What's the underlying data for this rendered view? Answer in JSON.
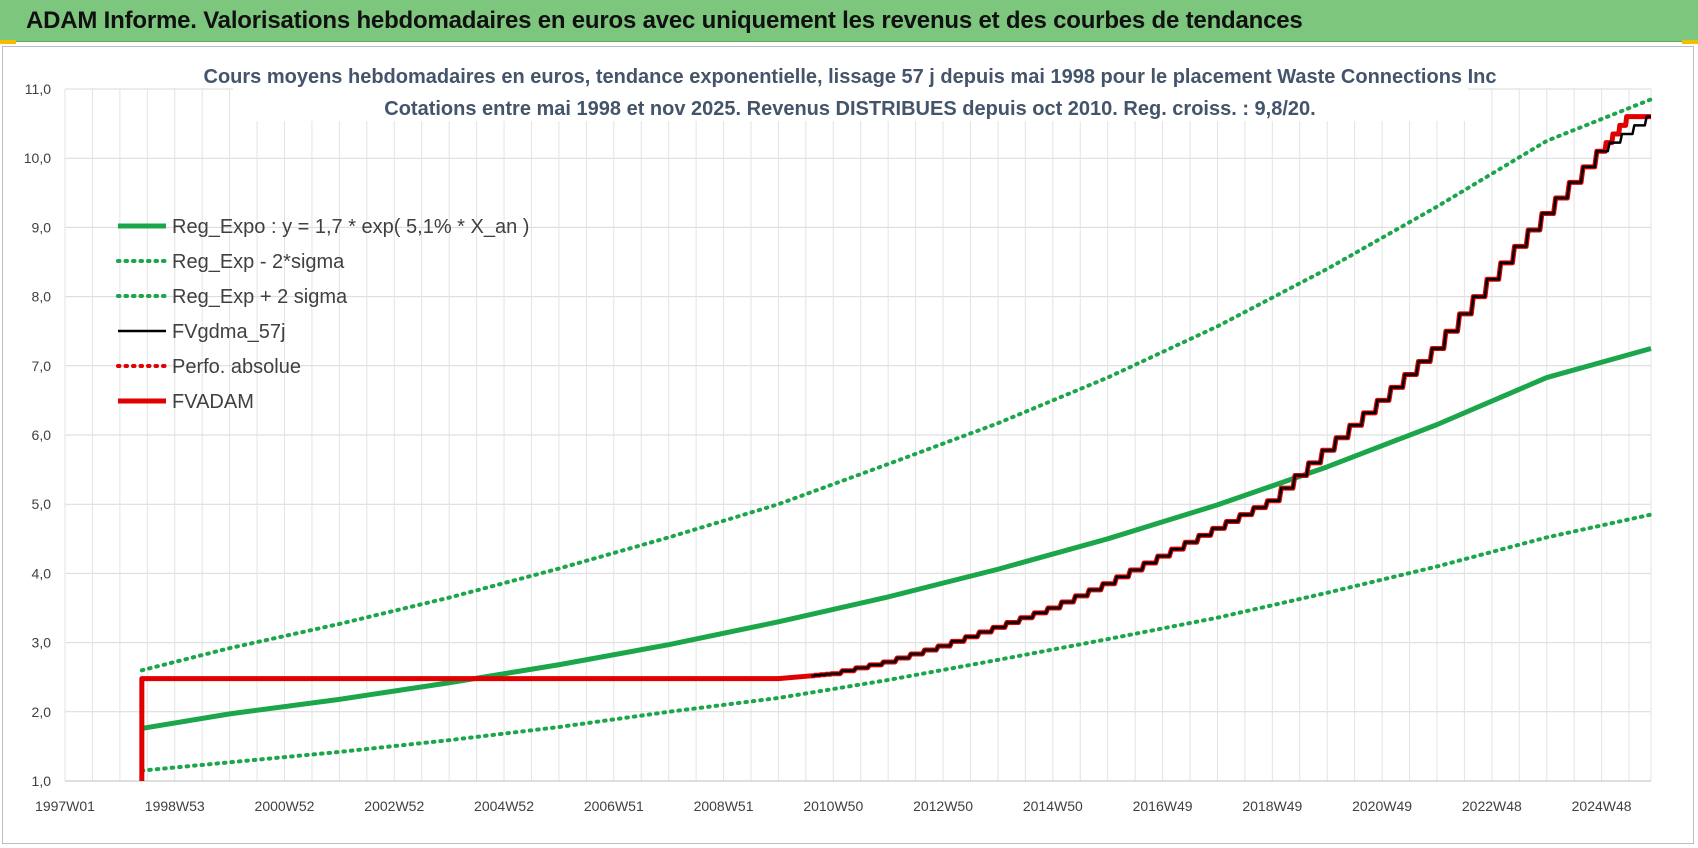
{
  "header": {
    "title": "ADAM Informe. Valorisations hebdomadaires en euros avec uniquement les revenus et des courbes de tendances"
  },
  "chart_data": {
    "type": "line",
    "title_lines": [
      "Cours moyens hebdomadaires en euros, tendance exponentielle, lissage 57 j depuis mai 1998 pour le placement Waste Connections Inc",
      "Cotations entre mai 1998 et nov 2025. Revenus DISTRIBUES depuis oct 2010. Reg. croiss. : 9,8/20."
    ],
    "xlabel": "",
    "ylabel": "",
    "x_tick_labels": [
      "1997W01",
      "1998W53",
      "2000W52",
      "2002W52",
      "2004W52",
      "2006W51",
      "2008W51",
      "2010W50",
      "2012W50",
      "2014W50",
      "2016W49",
      "2018W49",
      "2020W49",
      "2022W48",
      "2024W48"
    ],
    "x_range": [
      1997.0,
      2025.9
    ],
    "ylim": [
      1.0,
      11.0
    ],
    "y_ticks": [
      "1,0",
      "2,0",
      "3,0",
      "4,0",
      "5,0",
      "6,0",
      "7,0",
      "8,0",
      "9,0",
      "10,0",
      "11,0"
    ],
    "grid": true,
    "legend_position": "top-left",
    "series": [
      {
        "name": "Reg_Expo : y = 1,7 * exp( 5,1% *  X_an )",
        "color": "#1ca64c",
        "style": "solid-thick",
        "x": [
          1998.4,
          2000,
          2002,
          2004,
          2006,
          2008,
          2010,
          2012,
          2014,
          2016,
          2018,
          2020,
          2022,
          2024,
          2025.9
        ],
        "y": [
          1.76,
          1.97,
          2.18,
          2.42,
          2.68,
          2.97,
          3.3,
          3.66,
          4.06,
          4.5,
          4.99,
          5.54,
          6.15,
          6.83,
          7.25
        ]
      },
      {
        "name": "Reg_Exp - 2*sigma",
        "color": "#1ca64c",
        "style": "dotted",
        "x": [
          1998.4,
          2000,
          2002,
          2004,
          2006,
          2008,
          2010,
          2012,
          2014,
          2016,
          2018,
          2020,
          2022,
          2024,
          2025.9
        ],
        "y": [
          1.15,
          1.27,
          1.42,
          1.59,
          1.78,
          2.0,
          2.2,
          2.46,
          2.75,
          3.05,
          3.36,
          3.72,
          4.1,
          4.52,
          4.85
        ]
      },
      {
        "name": "Reg_Exp + 2 sigma",
        "color": "#1ca64c",
        "style": "dotted",
        "x": [
          1998.4,
          2000,
          2002,
          2004,
          2006,
          2008,
          2010,
          2012,
          2014,
          2016,
          2018,
          2020,
          2022,
          2024,
          2025.9
        ],
        "y": [
          2.6,
          2.92,
          3.27,
          3.65,
          4.07,
          4.52,
          5.0,
          5.58,
          6.17,
          6.83,
          7.57,
          8.4,
          9.3,
          10.25,
          10.85
        ]
      },
      {
        "name": "FVgdma_57j",
        "color": "#000000",
        "style": "solid",
        "x": [
          2010.6,
          2011,
          2012,
          2013,
          2014,
          2015,
          2016,
          2017,
          2018,
          2019,
          2020,
          2021,
          2022,
          2023,
          2024,
          2025,
          2025.9
        ],
        "y": [
          2.52,
          2.55,
          2.72,
          2.95,
          3.22,
          3.5,
          3.85,
          4.25,
          4.65,
          5.05,
          5.78,
          6.5,
          7.25,
          8.25,
          9.2,
          10.1,
          10.6
        ]
      },
      {
        "name": "Perfo. absolue",
        "color": "#e00000",
        "style": "dotted",
        "x": [],
        "y": []
      },
      {
        "name": "FVADAM",
        "color": "#e00000",
        "style": "solid-thick",
        "x": [
          1998.4,
          1998.4,
          2010.0,
          2010.6,
          2011,
          2012,
          2013,
          2014,
          2015,
          2016,
          2017,
          2018,
          2019,
          2020,
          2021,
          2022,
          2023,
          2024,
          2025,
          2025.5,
          2025.9
        ],
        "y": [
          1.0,
          2.48,
          2.48,
          2.52,
          2.55,
          2.72,
          2.95,
          3.22,
          3.5,
          3.85,
          4.25,
          4.65,
          5.05,
          5.78,
          6.5,
          7.25,
          8.25,
          9.2,
          10.1,
          10.6,
          10.6
        ]
      }
    ]
  }
}
